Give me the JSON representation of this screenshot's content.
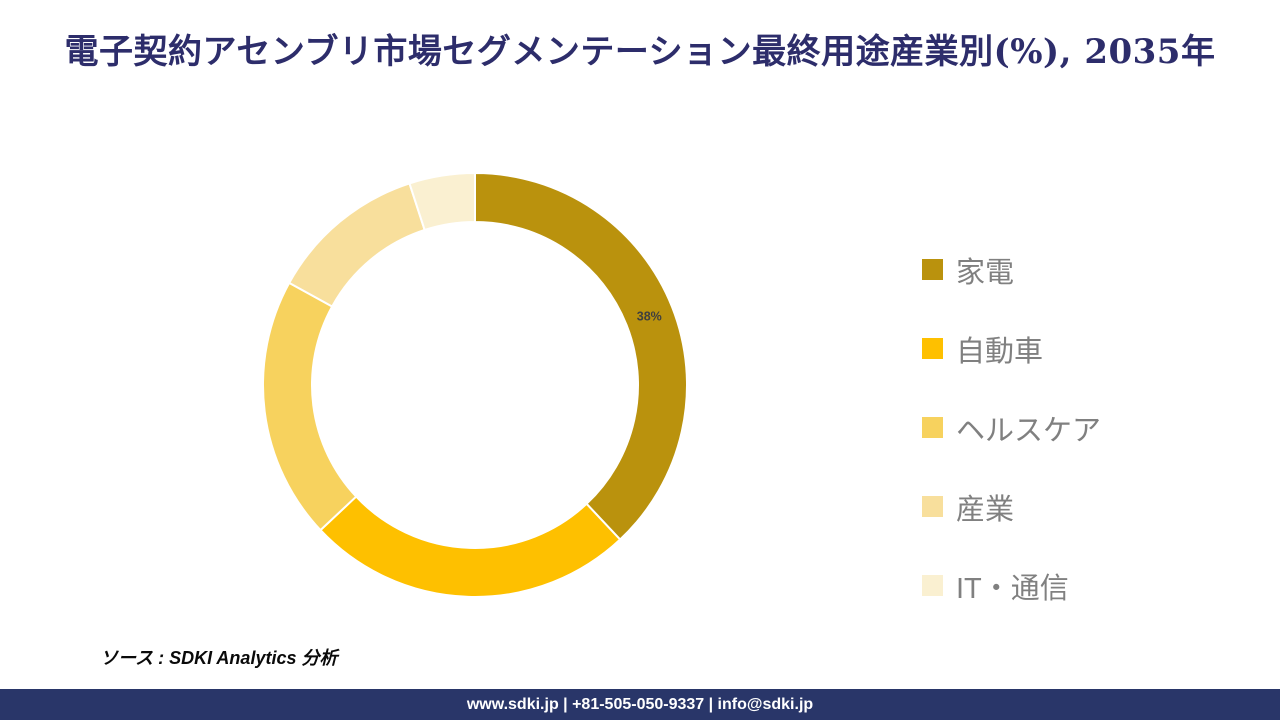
{
  "chart_data": {
    "type": "pie",
    "subtype": "donut",
    "title": "電子契約アセンブリ市場セグメンテーション最終用途産業別(%), 2035年",
    "unit": "%",
    "start_angle_deg": 0,
    "direction": "clockwise",
    "legend_position": "right",
    "categories": [
      "家電",
      "自動車",
      "ヘルスケア",
      "産業",
      "IT・通信"
    ],
    "values": [
      38,
      25,
      20,
      12,
      5
    ],
    "colors": [
      "#BA920D",
      "#FEC000",
      "#F7D25E",
      "#F8DF9C",
      "#FAF0D1"
    ],
    "data_labels": [
      "38%",
      "",
      "",
      "",
      ""
    ],
    "data_label_color": "#3F3F3F",
    "legend_text_color": "#808080",
    "title_color": "#2D2D6B"
  },
  "source_note": "ソース : SDKI Analytics 分析",
  "footer": {
    "text": "www.sdki.jp | +81-505-050-9337 | info@sdki.jp",
    "background": "#293669"
  }
}
